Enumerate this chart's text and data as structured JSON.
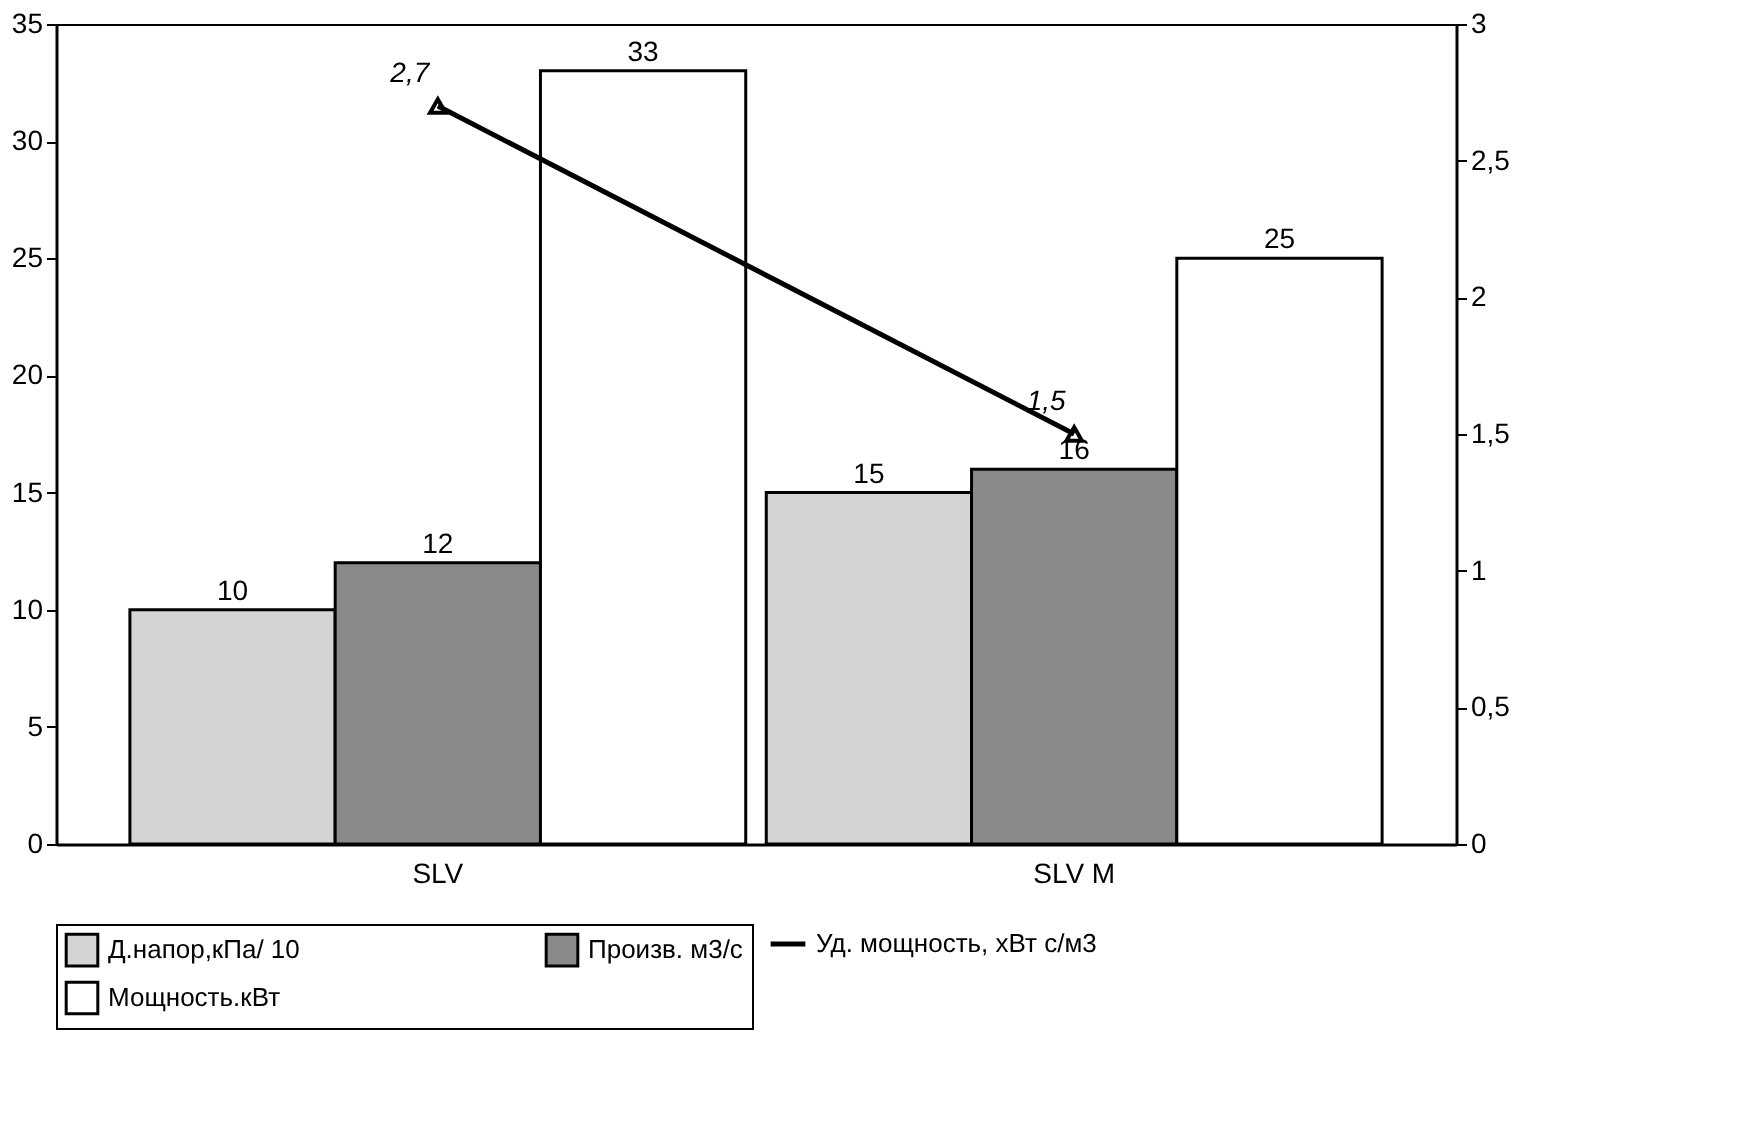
{
  "chart_data": {
    "type": "bar",
    "categories": [
      "SLV",
      "SLV M"
    ],
    "series": [
      {
        "name": "Д.напор,кПа/ 10",
        "color": "#d4d4d4",
        "values": [
          10,
          15
        ]
      },
      {
        "name": "Произв. м3/с",
        "color": "#8a8a8a",
        "values": [
          12,
          16
        ]
      },
      {
        "name": "Мощность.кВт",
        "color": "#ffffff",
        "values": [
          33,
          25
        ]
      },
      {
        "name": "Уд. мощность, хВт с/м3",
        "type": "line",
        "axis": "y2",
        "color": "#000000",
        "marker": "triangle",
        "line_style": "solid",
        "values": [
          2.7,
          1.5
        ],
        "value_labels": [
          "2,7",
          "1,5"
        ]
      }
    ],
    "data_labels": true,
    "ylim": [
      0,
      35
    ],
    "yticks": [
      0,
      5,
      10,
      15,
      20,
      25,
      30,
      35
    ],
    "y2lim": [
      0,
      3
    ],
    "y2ticks": [
      0,
      {
        "value": 0.5,
        "label": "0,5"
      },
      1,
      {
        "value": 1.5,
        "label": "1,5"
      },
      2,
      {
        "value": 2.5,
        "label": "2,5"
      },
      3
    ],
    "grid": false,
    "legend": "bottom"
  }
}
